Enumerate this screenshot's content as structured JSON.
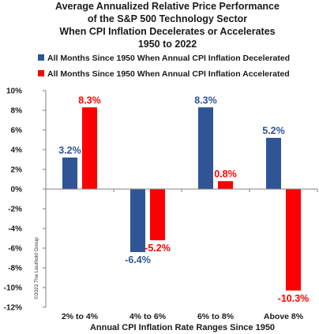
{
  "chart_data": {
    "type": "bar",
    "title_lines": [
      "Average Annualized Relative Price Performance",
      "of the S&P 500 Technology Sector",
      "When CPI Inflation Decelerates or Accelerates",
      "1950 to 2022"
    ],
    "categories": [
      "2% to 4%",
      "4% to 6%",
      "6% to 8%",
      "Above 8%"
    ],
    "series": [
      {
        "name": "All Months Since 1950 When Annual CPI Inflation Decelerated",
        "color": "#2f5597",
        "label_color": "#2f5597",
        "values": [
          3.2,
          -6.4,
          8.3,
          5.2
        ],
        "labels": [
          "3.2%",
          "-6.4%",
          "8.3%",
          "5.2%"
        ]
      },
      {
        "name": "All Months Since 1950 When Annual CPI Inflation Accelerated",
        "color": "#ff0000",
        "label_color": "#ff0000",
        "values": [
          8.3,
          -5.2,
          0.8,
          -10.3
        ],
        "labels": [
          "8.3%",
          "-5.2%",
          "0.8%",
          "-10.3%"
        ]
      }
    ],
    "ylim": [
      -12,
      10
    ],
    "yticks": [
      10,
      8,
      6,
      4,
      2,
      0,
      -2,
      -4,
      -6,
      -8,
      -10,
      -12
    ],
    "ytick_labels": [
      "10%",
      "8%",
      "6%",
      "4%",
      "2%",
      "0%",
      "-2%",
      "-4%",
      "-6%",
      "-8%",
      "-10%",
      "-12%"
    ],
    "xlabel": "Annual CPI Inflation Rate Ranges Since 1950",
    "ylabel": "",
    "legend_position": "top-left",
    "grid": false,
    "copyright": "©2022 The Leuthold Group"
  }
}
